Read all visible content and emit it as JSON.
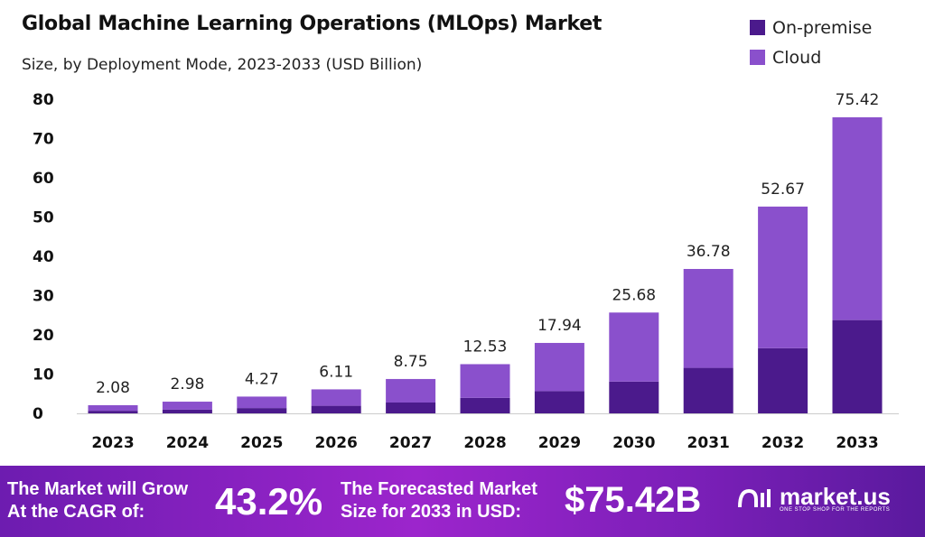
{
  "chart_data": {
    "type": "bar",
    "stacked": true,
    "title": "Global Machine Learning Operations (MLOps) Market",
    "subtitle": "Size, by Deployment Mode, 2023-2033 (USD Billion)",
    "xlabel": "",
    "ylabel": "",
    "ylim": [
      0,
      80
    ],
    "yticks": [
      0,
      10,
      20,
      30,
      40,
      50,
      60,
      70,
      80
    ],
    "grid": false,
    "legend_position": "top-right",
    "categories": [
      "2023",
      "2024",
      "2025",
      "2026",
      "2027",
      "2028",
      "2029",
      "2030",
      "2031",
      "2032",
      "2033"
    ],
    "series": [
      {
        "name": "On-premise",
        "color": "#4b1a8c",
        "values": [
          0.66,
          0.94,
          1.35,
          1.93,
          2.76,
          3.95,
          5.65,
          8.09,
          11.59,
          16.59,
          23.76
        ]
      },
      {
        "name": "Cloud",
        "color": "#8a50cc",
        "values": [
          1.42,
          2.04,
          2.92,
          4.18,
          5.99,
          8.58,
          12.29,
          17.59,
          25.19,
          36.08,
          51.66
        ]
      }
    ],
    "totals": [
      2.08,
      2.98,
      4.27,
      6.11,
      8.75,
      12.53,
      17.94,
      25.68,
      36.78,
      52.67,
      75.42
    ],
    "total_labels": [
      "2.08",
      "2.98",
      "4.27",
      "6.11",
      "8.75",
      "12.53",
      "17.94",
      "25.68",
      "36.78",
      "52.67",
      "75.42"
    ]
  },
  "banner": {
    "cagr_text_line1": "The Market will Grow",
    "cagr_text_line2": "At the CAGR of:",
    "cagr_value": "43.2%",
    "forecast_text_line1": "The Forecasted Market",
    "forecast_text_line2": "Size for 2033 in USD:",
    "forecast_value": "$75.42B",
    "logo_name": "market.us",
    "logo_tagline": "ONE STOP SHOP FOR THE REPORTS"
  }
}
